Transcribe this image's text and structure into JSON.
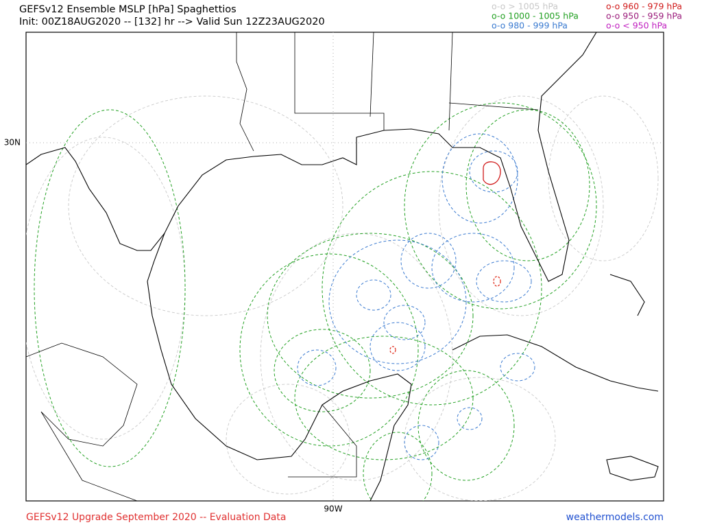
{
  "header": {
    "title": "GEFSv12 Ensemble MSLP [hPa] Spaghettios",
    "subtitle": "Init: 00Z18AUG2020 -- [132] hr --> Valid Sun 12Z23AUG2020"
  },
  "legend": [
    {
      "label": "o-o > 1005 hPa",
      "color": "#c8c8c8"
    },
    {
      "label": "o-o 1000 - 1005 hPa",
      "color": "#22a022"
    },
    {
      "label": "o-o 980 - 999 hPa",
      "color": "#3a7ad0"
    },
    {
      "label": "o-o 960 - 979 hPa",
      "color": "#d01818"
    },
    {
      "label": "o-o 950 - 959 hPa",
      "color": "#9a1a7a"
    },
    {
      "label": "o-o < 950 hPa",
      "color": "#c020c0"
    }
  ],
  "map": {
    "lat_label": "30N",
    "lon_label": "90W"
  },
  "footer": {
    "left": "GEFSv12 Upgrade September 2020 -- Evaluation Data",
    "right": "weathermodels.com"
  }
}
